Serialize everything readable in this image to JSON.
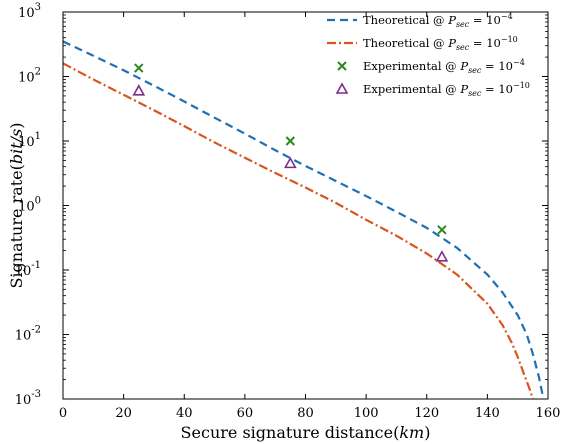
{
  "chart_data": {
    "type": "line",
    "xlabel": "Secure signature distance",
    "xlabel_unit": "km",
    "ylabel": "Signature rate",
    "ylabel_unit": "bit/s",
    "xlim": [
      0,
      160
    ],
    "ylim": [
      0.001,
      1000
    ],
    "yscale": "log",
    "x_ticks": [
      0,
      20,
      40,
      60,
      80,
      100,
      120,
      140,
      160
    ],
    "y_ticks": [
      {
        "value": 0.001,
        "base": "10",
        "exp": "-3"
      },
      {
        "value": 0.01,
        "base": "10",
        "exp": "-2"
      },
      {
        "value": 0.1,
        "base": "10",
        "exp": "-1"
      },
      {
        "value": 1,
        "base": "10",
        "exp": "0"
      },
      {
        "value": 10,
        "base": "10",
        "exp": "1"
      },
      {
        "value": 100,
        "base": "10",
        "exp": "2"
      },
      {
        "value": 1000,
        "base": "10",
        "exp": "3"
      }
    ],
    "grid": false,
    "legend_position": "top-right",
    "series": [
      {
        "name": "Theoretical @ P_sec = 10^-4",
        "legend_prefix": "Theoretical @ ",
        "legend_sym": "P",
        "legend_sub": "sec",
        "legend_eq": " = 10",
        "legend_exp": "−4",
        "kind": "line",
        "style": "dashed",
        "color": "#1f6fb4",
        "x": [
          0,
          10,
          20,
          30,
          40,
          50,
          60,
          70,
          80,
          90,
          100,
          110,
          120,
          130,
          140,
          145,
          150,
          153,
          155,
          157,
          158.5
        ],
        "y": [
          350,
          210,
          125,
          72,
          41,
          23,
          13,
          7.2,
          4.1,
          2.4,
          1.4,
          0.8,
          0.45,
          0.22,
          0.085,
          0.045,
          0.02,
          0.01,
          0.005,
          0.0022,
          0.001
        ]
      },
      {
        "name": "Theoretical @ P_sec = 10^-10",
        "legend_prefix": "Theoretical @ ",
        "legend_sym": "P",
        "legend_sub": "sec",
        "legend_eq": " = 10",
        "legend_exp": "−10",
        "kind": "line",
        "style": "dashdot",
        "color": "#d9541e",
        "x": [
          0,
          10,
          20,
          30,
          40,
          50,
          60,
          70,
          80,
          90,
          100,
          110,
          120,
          130,
          140,
          145,
          148,
          150,
          152,
          154,
          155
        ],
        "y": [
          160,
          90,
          52,
          30,
          17,
          9.5,
          5.5,
          3.2,
          1.9,
          1.1,
          0.6,
          0.34,
          0.18,
          0.085,
          0.03,
          0.014,
          0.0075,
          0.0045,
          0.0025,
          0.0014,
          0.001
        ]
      },
      {
        "name": "Experimental @ P_sec = 10^-4",
        "legend_prefix": "Experimental @ ",
        "legend_sym": "P",
        "legend_sub": "sec",
        "legend_eq": " = 10",
        "legend_exp": "−4",
        "kind": "scatter",
        "marker": "x",
        "color": "#2e8a1f",
        "x": [
          25,
          75,
          125
        ],
        "y": [
          135,
          10,
          0.42
        ]
      },
      {
        "name": "Experimental @ P_sec = 10^-10",
        "legend_prefix": "Experimental @ ",
        "legend_sym": "P",
        "legend_sub": "sec",
        "legend_eq": " = 10",
        "legend_exp": "−10",
        "kind": "scatter",
        "marker": "triangle",
        "color": "#7e2f8e",
        "x": [
          25,
          75,
          125
        ],
        "y": [
          60,
          4.5,
          0.16
        ]
      }
    ]
  }
}
